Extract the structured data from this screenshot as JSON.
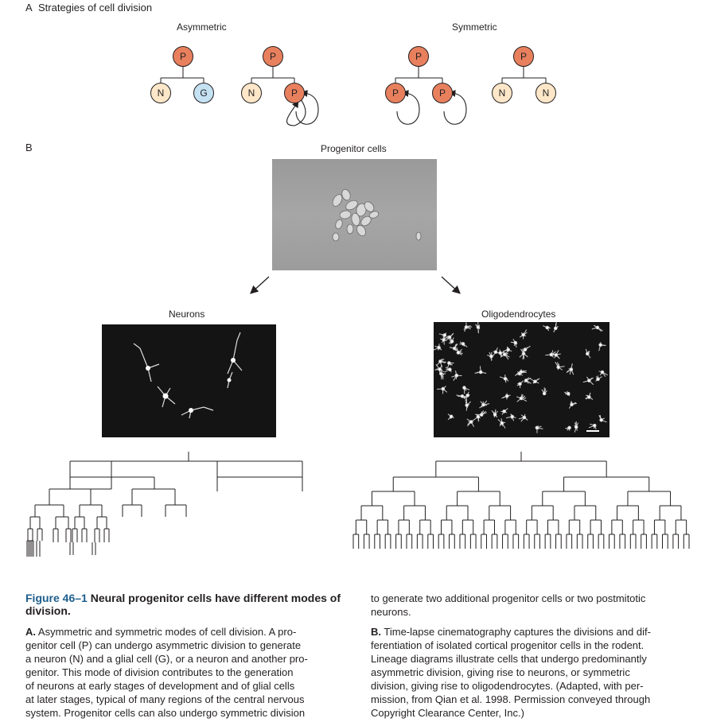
{
  "panel_a": {
    "letter": "A",
    "title": "Strategies of cell division",
    "asymmetric_label": "Asymmetric",
    "symmetric_label": "Symmetric",
    "progenitor": "P",
    "neuron": "N",
    "glia": "G",
    "colors": {
      "progenitor": "#e8805e",
      "neuron": "#fde7c8",
      "glia": "#c5e2f3"
    }
  },
  "panel_b": {
    "letter": "B",
    "progenitor_label": "Progenitor cells",
    "neurons_label": "Neurons",
    "oligo_label": "Oligodendrocytes"
  },
  "caption": {
    "figure_number": "Figure 46–1",
    "title": "Neural progenitor cells have different modes of division.",
    "a_letter": "A.",
    "a_line1": "Asymmetric and symmetric modes of cell division. A pro-",
    "a_line2": "genitor cell (P) can undergo asymmetric division to generate",
    "a_line3": "a neuron (N) and a glial cell (G), or a neuron and another pro-",
    "a_line4": "genitor. This mode of division contributes to the generation",
    "a_line5": "of neurons at early stages of development and of glial cells",
    "a_line6": "at later stages, typical of many regions of the central nervous",
    "a_line7": "system. Progenitor cells can also undergo symmetric division",
    "r_line1": "to generate two additional progenitor cells or two postmitotic",
    "r_line2": "neurons.",
    "b_letter": "B.",
    "b_line1": "Time-lapse cinematography captures the divisions and dif-",
    "b_line2": "ferentiation of isolated cortical progenitor cells in the rodent.",
    "b_line3": "Lineage diagrams illustrate cells that undergo predominantly",
    "b_line4": "asymmetric division, giving rise to neurons, or symmetric",
    "b_line5": "division, giving rise to oligodendrocytes. (Adapted, with per-",
    "b_line6": "mission, from Qian et al. 1998. Permission conveyed through",
    "b_line7": "Copyright Clearance Center, Inc.)"
  }
}
